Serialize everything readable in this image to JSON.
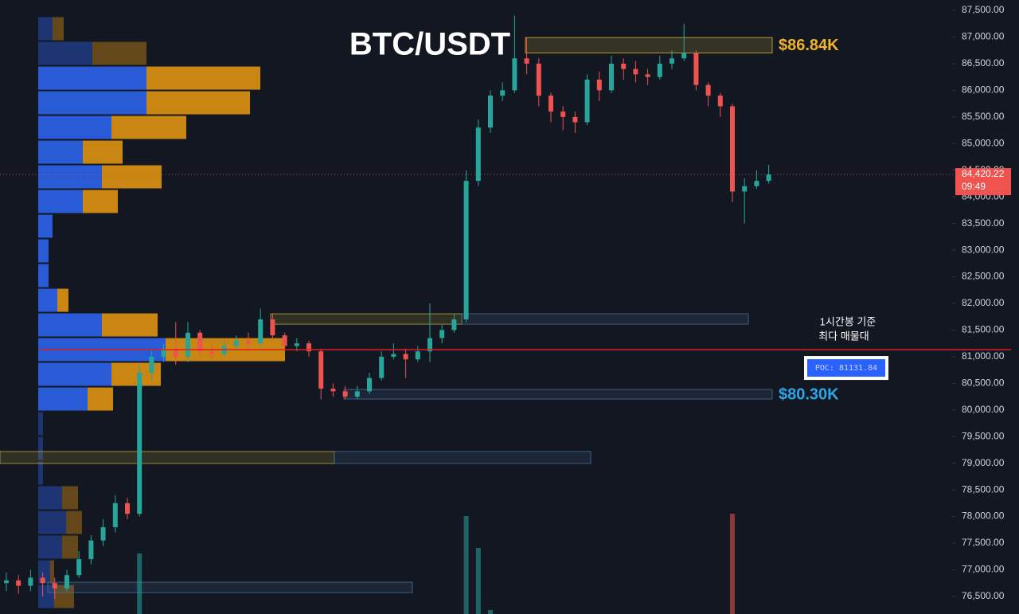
{
  "chart_data": {
    "type": "candlestick",
    "title": "BTC/USDT",
    "ylim": [
      76170,
      87695
    ],
    "yticks": [
      {
        "value": 87500,
        "label": "87,500.00"
      },
      {
        "value": 87000,
        "label": "87,000.00"
      },
      {
        "value": 86500,
        "label": "86,500.00"
      },
      {
        "value": 86000,
        "label": "86,000.00"
      },
      {
        "value": 85500,
        "label": "85,500.00"
      },
      {
        "value": 85000,
        "label": "85,000.00"
      },
      {
        "value": 84500,
        "label": "84,500.00"
      },
      {
        "value": 84000,
        "label": "84,000.00"
      },
      {
        "value": 83500,
        "label": "83,500.00"
      },
      {
        "value": 83000,
        "label": "83,000.00"
      },
      {
        "value": 82500,
        "label": "82,500.00"
      },
      {
        "value": 82000,
        "label": "82,000.00"
      },
      {
        "value": 81500,
        "label": "81,500.00"
      },
      {
        "value": 81000,
        "label": "81,000.00"
      },
      {
        "value": 80500,
        "label": "80,500.00"
      },
      {
        "value": 80000,
        "label": "80,000.00"
      },
      {
        "value": 79500,
        "label": "79,500.00"
      },
      {
        "value": 79000,
        "label": "79,000.00"
      },
      {
        "value": 78500,
        "label": "78,500.00"
      },
      {
        "value": 78000,
        "label": "78,000.00"
      },
      {
        "value": 77500,
        "label": "77,500.00"
      },
      {
        "value": 77000,
        "label": "77,000.00"
      },
      {
        "value": 76500,
        "label": "76,500.00"
      }
    ],
    "up_color": "#26a69a",
    "down_color": "#ef5350",
    "open": [
      76750,
      76800,
      76700,
      76850,
      76750,
      76650,
      76900,
      77200,
      77550,
      77800,
      78250,
      78050,
      80700,
      81000,
      81150,
      81000,
      81450,
      81100,
      81050,
      81200,
      81300,
      81250,
      81700,
      81400,
      81200,
      81250,
      81100,
      80400,
      80350,
      80250,
      80350,
      80600,
      81000,
      81050,
      80950,
      81100,
      81350,
      81500,
      81700,
      84300,
      85300,
      85900,
      86000,
      86600,
      86500,
      85900,
      85600,
      85500,
      85400,
      86200,
      86000,
      86500,
      86400,
      86300,
      86250,
      86500,
      86600,
      86700,
      86100,
      85900,
      85700,
      84100,
      84200,
      84300
    ],
    "high": [
      76950,
      76900,
      77000,
      76950,
      76850,
      77000,
      77350,
      77650,
      77950,
      78400,
      78350,
      80850,
      81100,
      81250,
      81650,
      81650,
      81500,
      81200,
      81300,
      81400,
      81450,
      81900,
      81800,
      81450,
      81350,
      81300,
      81150,
      80500,
      80450,
      80450,
      80700,
      81100,
      81250,
      81150,
      81200,
      82000,
      81600,
      81800,
      84500,
      85450,
      86000,
      86150,
      87400,
      87000,
      86600,
      85950,
      85700,
      85600,
      86300,
      86350,
      86650,
      86600,
      86550,
      86400,
      86650,
      86750,
      87250,
      86750,
      86150,
      85950,
      85750,
      84350,
      84500,
      84600
    ],
    "low": [
      76600,
      76550,
      76600,
      76500,
      76450,
      76600,
      76850,
      77100,
      77450,
      77700,
      77950,
      78000,
      80550,
      80900,
      80850,
      80900,
      81000,
      80950,
      81000,
      81150,
      81150,
      81200,
      81300,
      81100,
      81100,
      81000,
      80200,
      80250,
      80200,
      80200,
      80300,
      80550,
      80950,
      80600,
      80900,
      80900,
      81250,
      81450,
      81650,
      84200,
      85200,
      85800,
      85950,
      86300,
      85700,
      85400,
      85250,
      85200,
      85350,
      85800,
      85950,
      86200,
      86150,
      86100,
      86200,
      86400,
      86550,
      86000,
      85700,
      85500,
      83900,
      83500,
      84150,
      84250
    ],
    "close": [
      76800,
      76700,
      76850,
      76750,
      76650,
      76900,
      77200,
      77550,
      77800,
      78250,
      78050,
      80700,
      81000,
      81150,
      81000,
      81450,
      81100,
      81050,
      81200,
      81300,
      81250,
      81700,
      81400,
      81200,
      81250,
      81100,
      80400,
      80350,
      80250,
      80350,
      80600,
      81000,
      81050,
      80950,
      81100,
      81350,
      81500,
      81700,
      84300,
      85300,
      85900,
      86000,
      86600,
      86500,
      85900,
      85600,
      85500,
      85400,
      86200,
      86000,
      86500,
      86400,
      86300,
      86250,
      86500,
      86600,
      86700,
      86100,
      85900,
      85700,
      84100,
      84200,
      84300,
      84420.22
    ],
    "current_price_label": "84,420.22",
    "countdown": "09:49",
    "volume": {
      "candles": [
        11,
        38,
        39,
        40,
        60
      ],
      "values": [
        76,
        123,
        83,
        5,
        126
      ]
    },
    "volume_profile": {
      "buy_color": "#2a5bd7",
      "sell_color": "#c98612",
      "levels": [
        87156,
        86693,
        86229,
        85766,
        85303,
        84839,
        84376,
        83913,
        83449,
        82986,
        82522,
        82059,
        81596,
        81132,
        80669,
        80205,
        79742,
        79279,
        78815,
        78352,
        77888,
        77425,
        76961,
        76498
      ],
      "buy": [
        18,
        68,
        136,
        136,
        92,
        56,
        80,
        56,
        18,
        13,
        13,
        24,
        80,
        160,
        92,
        62,
        6,
        6,
        6,
        30,
        35,
        30,
        15,
        20
      ],
      "sell": [
        14,
        68,
        143,
        130,
        94,
        50,
        75,
        44,
        0,
        0,
        0,
        14,
        70,
        150,
        62,
        32,
        0,
        0,
        0,
        20,
        20,
        20,
        5,
        25
      ],
      "dim": [
        true,
        true,
        false,
        false,
        false,
        false,
        false,
        false,
        false,
        false,
        false,
        false,
        false,
        false,
        false,
        false,
        true,
        true,
        true,
        true,
        true,
        true,
        true,
        true
      ]
    },
    "zones": [
      {
        "top": 86990,
        "bottom": 86700,
        "color": "#d4b83a",
        "label": "$86.84K",
        "label_color": "#f0b429"
      },
      {
        "top": 81805,
        "bottom": 81610,
        "color": "#b8a53a"
      },
      {
        "top": 81805,
        "bottom": 81610,
        "color": "#4a6d96"
      },
      {
        "top": 80385,
        "bottom": 80205,
        "color": "#4a6d96",
        "label": "$80.30K",
        "label_color": "#2aa7e6"
      },
      {
        "top": 79220,
        "bottom": 78995,
        "color": "#b8a53a"
      },
      {
        "top": 79220,
        "bottom": 78995,
        "color": "#4a6d96"
      },
      {
        "top": 76767,
        "bottom": 76570,
        "color": "#4a6d96"
      }
    ],
    "poc": {
      "value": 81131.84,
      "label": "POC: 81131.84",
      "color": "#e01e1e"
    },
    "annotations": [
      "1시간봉 기준",
      "최다 매물대"
    ]
  }
}
